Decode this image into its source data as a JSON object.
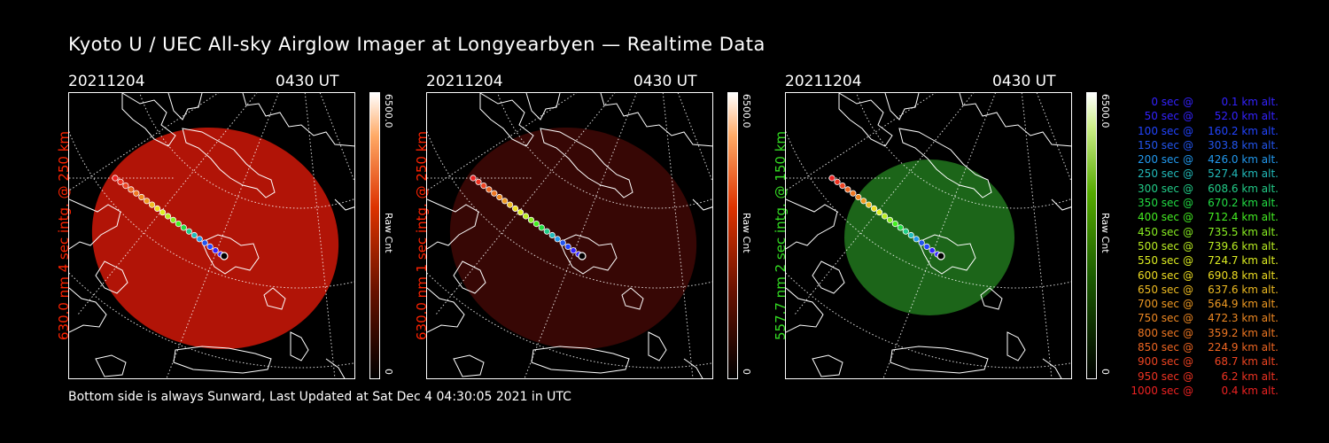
{
  "title": "Kyoto U / UEC All-sky Airglow Imager at Longyearbyen — Realtime Data",
  "footer": "Bottom side is always Sunward, Last Updated at Sat Dec  4 04:30:05 2021 in UTC",
  "panels": [
    {
      "date": "20211204",
      "time": "0430 UT",
      "ylabel": "630.0 nm 4 sec intg. @ 250 km",
      "ylabel_color": "#ff2200",
      "cbar_max": "6500.0",
      "cbar_min": "0",
      "cbar_unit": "Raw Cnt",
      "colormap": "red",
      "image_color": "#c01608",
      "image_opacity": 0.92
    },
    {
      "date": "20211204",
      "time": "0430 UT",
      "ylabel": "630.0 nm 1 sec intg. @ 250 km",
      "ylabel_color": "#ff2200",
      "cbar_max": "6500.0",
      "cbar_min": "0",
      "cbar_unit": "Raw Cnt",
      "colormap": "red",
      "image_color": "#3a0705",
      "image_opacity": 0.95
    },
    {
      "date": "20211204",
      "time": "0430 UT",
      "ylabel": "557.7 nm 2 sec intg. @ 150 km",
      "ylabel_color": "#33dd22",
      "cbar_max": "6500.0",
      "cbar_min": "0",
      "cbar_unit": "Raw Cnt",
      "colormap": "green",
      "image_color": "#1e6a1a",
      "image_opacity": 0.95
    }
  ],
  "legend": [
    {
      "time": "0 sec",
      "alt": "0.1 km alt.",
      "color": "#3322ff"
    },
    {
      "time": "50 sec",
      "alt": "52.0 km alt.",
      "color": "#3322ff"
    },
    {
      "time": "100 sec",
      "alt": "160.2 km alt.",
      "color": "#2244ff"
    },
    {
      "time": "150 sec",
      "alt": "303.8 km alt.",
      "color": "#2255ee"
    },
    {
      "time": "200 sec",
      "alt": "426.0 km alt.",
      "color": "#2299ee"
    },
    {
      "time": "250 sec",
      "alt": "527.4 km alt.",
      "color": "#22bbbb"
    },
    {
      "time": "300 sec",
      "alt": "608.6 km alt.",
      "color": "#22cc88"
    },
    {
      "time": "350 sec",
      "alt": "670.2 km alt.",
      "color": "#22dd44"
    },
    {
      "time": "400 sec",
      "alt": "712.4 km alt.",
      "color": "#44ee22"
    },
    {
      "time": "450 sec",
      "alt": "735.5 km alt.",
      "color": "#88ee22"
    },
    {
      "time": "500 sec",
      "alt": "739.6 km alt.",
      "color": "#bbee22"
    },
    {
      "time": "550 sec",
      "alt": "724.7 km alt.",
      "color": "#ddee22"
    },
    {
      "time": "600 sec",
      "alt": "690.8 km alt.",
      "color": "#eedd22"
    },
    {
      "time": "650 sec",
      "alt": "637.6 km alt.",
      "color": "#eebb22"
    },
    {
      "time": "700 sec",
      "alt": "564.9 km alt.",
      "color": "#ee9922"
    },
    {
      "time": "750 sec",
      "alt": "472.3 km alt.",
      "color": "#ee8822"
    },
    {
      "time": "800 sec",
      "alt": "359.2 km alt.",
      "color": "#ee7722"
    },
    {
      "time": "850 sec",
      "alt": "224.9 km alt.",
      "color": "#ee6622"
    },
    {
      "time": "900 sec",
      "alt": "68.7 km alt.",
      "color": "#ee4422"
    },
    {
      "time": "950 sec",
      "alt": "6.2 km alt.",
      "color": "#ee3322"
    },
    {
      "time": "1000 sec",
      "alt": "0.4 km alt.",
      "color": "#ee2222"
    }
  ]
}
